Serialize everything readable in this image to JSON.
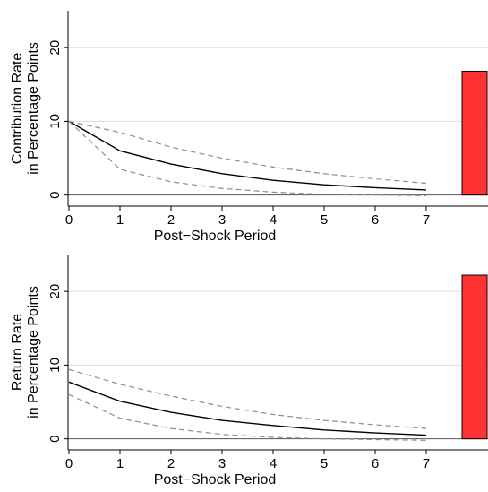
{
  "chart_data": [
    {
      "type": "line",
      "xlabel": "Post−Shock Period",
      "ylabel": [
        "Contribution Rate",
        "in Percentage Points"
      ],
      "x": [
        0,
        1,
        2,
        3,
        4,
        5,
        6,
        7
      ],
      "xticks": [
        "0",
        "1",
        "2",
        "3",
        "4",
        "5",
        "6",
        "7"
      ],
      "yticks": [
        "0",
        "10",
        "20"
      ],
      "ylim": [
        -1.5,
        25
      ],
      "grid": true,
      "series": [
        {
          "role": "estimate",
          "values": [
            10.0,
            6.0,
            4.2,
            2.9,
            2.0,
            1.4,
            1.0,
            0.7
          ]
        },
        {
          "role": "upper-bound",
          "values": [
            10.0,
            8.5,
            6.5,
            5.0,
            3.8,
            2.9,
            2.2,
            1.6
          ]
        },
        {
          "role": "lower-bound",
          "values": [
            10.0,
            3.5,
            1.8,
            0.9,
            0.4,
            0.1,
            0.0,
            -0.1
          ]
        }
      ],
      "bar": {
        "value": 16.8,
        "color": "#ff3333"
      }
    },
    {
      "type": "line",
      "xlabel": "Post−Shock Period",
      "ylabel": [
        "Return Rate",
        "in Percentage Points"
      ],
      "x": [
        0,
        1,
        2,
        3,
        4,
        5,
        6,
        7
      ],
      "xticks": [
        "0",
        "1",
        "2",
        "3",
        "4",
        "5",
        "6",
        "7"
      ],
      "yticks": [
        "0",
        "10",
        "20"
      ],
      "ylim": [
        -1.5,
        25
      ],
      "grid": true,
      "series": [
        {
          "role": "estimate",
          "values": [
            7.7,
            5.1,
            3.6,
            2.5,
            1.8,
            1.2,
            0.8,
            0.5
          ]
        },
        {
          "role": "upper-bound",
          "values": [
            9.4,
            7.4,
            5.8,
            4.4,
            3.3,
            2.5,
            1.9,
            1.4
          ]
        },
        {
          "role": "lower-bound",
          "values": [
            6.0,
            2.8,
            1.4,
            0.6,
            0.2,
            0.0,
            -0.1,
            -0.2
          ]
        }
      ],
      "bar": {
        "value": 22.2,
        "color": "#ff3333"
      }
    }
  ]
}
